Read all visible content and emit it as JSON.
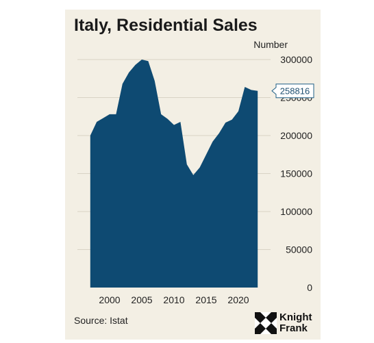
{
  "chart_data": {
    "type": "area",
    "title": "Italy, Residential Sales",
    "unit_label": "Number",
    "x": [
      1997,
      1998,
      1999,
      2000,
      2001,
      2002,
      2003,
      2004,
      2005,
      2006,
      2007,
      2008,
      2009,
      2010,
      2011,
      2012,
      2013,
      2014,
      2015,
      2016,
      2017,
      2018,
      2019,
      2020,
      2021,
      2022,
      2023
    ],
    "values": [
      200000,
      218000,
      223000,
      228000,
      228000,
      268000,
      283000,
      293000,
      300000,
      298000,
      272000,
      228000,
      222000,
      214000,
      218000,
      162000,
      148000,
      158000,
      175000,
      192000,
      203000,
      217000,
      221000,
      232000,
      264000,
      260000,
      258816
    ],
    "xlim": [
      1995,
      2025
    ],
    "ylim": [
      0,
      300000
    ],
    "xticks": [
      2000,
      2005,
      2010,
      2015,
      2020
    ],
    "yticks": [
      0,
      50000,
      100000,
      150000,
      200000,
      250000,
      300000
    ],
    "callout": "258816",
    "grid": "horizontal",
    "color": "#0e4a72"
  },
  "source": "Source: Istat",
  "logo": {
    "line1": "Knight",
    "line2": "Frank"
  },
  "colors": {
    "background": "#f3efe4",
    "area": "#0e4a72",
    "text": "#1a1a1a"
  }
}
